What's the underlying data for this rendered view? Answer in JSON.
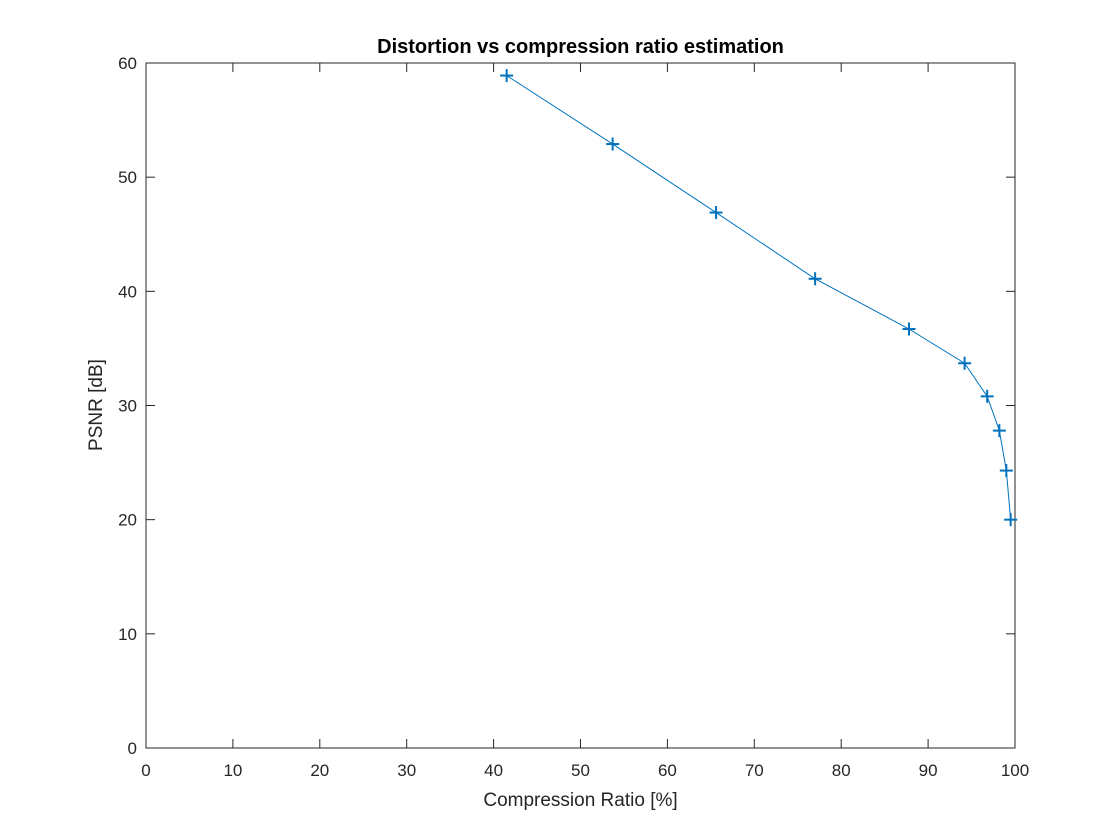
{
  "chart_data": {
    "type": "line",
    "title": "Distortion vs compression ratio estimation",
    "xlabel": "Compression Ratio [%]",
    "ylabel": "PSNR [dB]",
    "xlim": [
      0,
      100
    ],
    "ylim": [
      0,
      60
    ],
    "xticks": [
      0,
      10,
      20,
      30,
      40,
      50,
      60,
      70,
      80,
      90,
      100
    ],
    "yticks": [
      0,
      10,
      20,
      30,
      40,
      50,
      60
    ],
    "grid": false,
    "marker": "plus",
    "color": "#0072BD",
    "series": [
      {
        "x": [
          41.5,
          53.7,
          65.6,
          77.0,
          87.8,
          94.2,
          96.8,
          98.2,
          99.0,
          99.5
        ],
        "y": [
          58.9,
          52.9,
          46.9,
          41.1,
          36.7,
          33.7,
          30.8,
          27.8,
          24.3,
          20.0
        ]
      }
    ]
  }
}
